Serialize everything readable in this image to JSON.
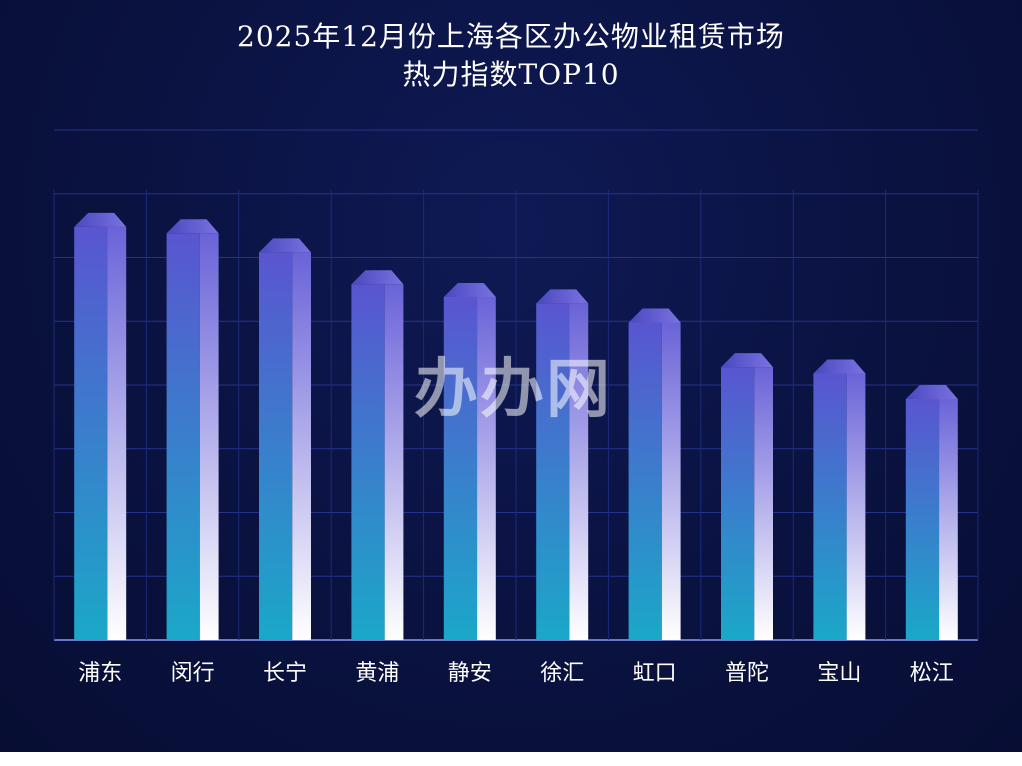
{
  "chart_data": {
    "type": "bar",
    "title": "2025年12月份上海各区办公物业租赁市场",
    "subtitle": "热力指数TOP10",
    "xlabel": "",
    "ylabel": "",
    "categories": [
      "浦东",
      "闵行",
      "长宁",
      "黄浦",
      "静安",
      "徐汇",
      "虹口",
      "普陀",
      "宝山",
      "松江"
    ],
    "values": [
      6.7,
      6.6,
      6.3,
      5.8,
      5.6,
      5.5,
      5.2,
      4.5,
      4.4,
      4.0
    ],
    "ylim": [
      0,
      8
    ],
    "grid": true,
    "legend": "none",
    "colors": {
      "background": "#0a1240",
      "bar_top": "#5a55d0",
      "bar_bottom": "#1aa8c8",
      "bar_side_light": "#ffffff",
      "grid": "#2a3a8a"
    }
  },
  "watermark": "办办网"
}
